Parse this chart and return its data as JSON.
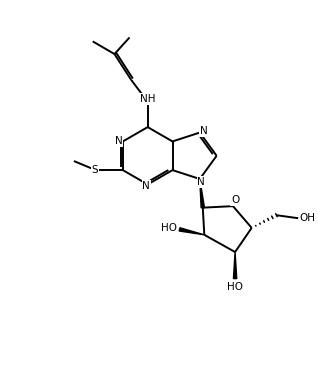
{
  "bg_color": "#ffffff",
  "line_color": "#000000",
  "line_width": 1.4,
  "font_size": 7.5,
  "fig_width": 3.18,
  "fig_height": 3.84,
  "xlim": [
    0,
    10
  ],
  "ylim": [
    0,
    12
  ]
}
